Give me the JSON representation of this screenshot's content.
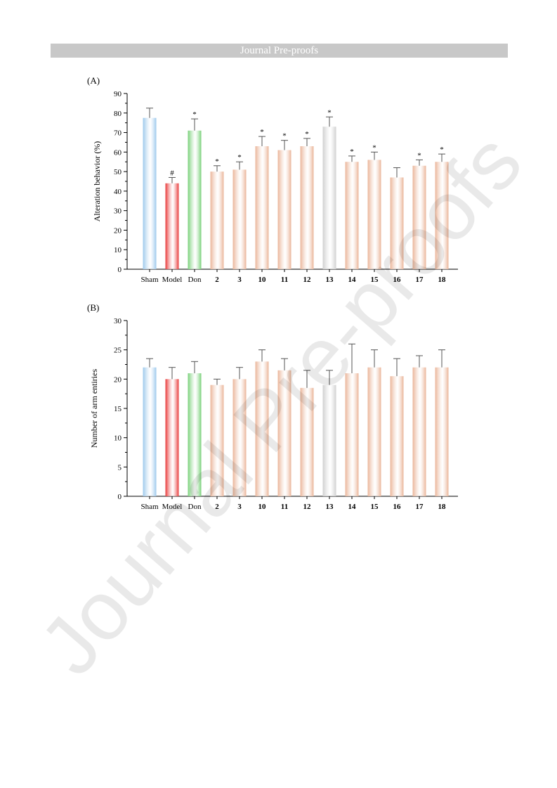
{
  "header": {
    "title": "Journal Pre-proofs"
  },
  "watermark": {
    "text": "Journal Pre-proofs"
  },
  "colors": {
    "sham": "#9cc8ec",
    "model": "#e83838",
    "don": "#78d078",
    "compound": "#eab498",
    "compound13": "#cfcfcf"
  },
  "chart_data": [
    {
      "type": "bar",
      "panel_label": "(A)",
      "ylabel": "Alteration behavior (%)",
      "ylim": [
        0,
        90
      ],
      "yticks": [
        0,
        10,
        20,
        30,
        40,
        50,
        60,
        70,
        80,
        90
      ],
      "categories": [
        "Sham",
        "Model",
        "Don",
        "2",
        "3",
        "10",
        "11",
        "12",
        "13",
        "14",
        "15",
        "16",
        "17",
        "18"
      ],
      "values": [
        77.5,
        44,
        71,
        50,
        51,
        63,
        61,
        63,
        73,
        55,
        56,
        47,
        53,
        55
      ],
      "errors": [
        5,
        3,
        6,
        3,
        4,
        5,
        5,
        4,
        5,
        3,
        4,
        5,
        3,
        4
      ],
      "annotations": [
        "",
        "#",
        "*",
        "*",
        "*",
        "*",
        "*",
        "*",
        "*",
        "*",
        "*",
        "",
        "*",
        "*"
      ]
    },
    {
      "type": "bar",
      "panel_label": "(B)",
      "ylabel": "Number of arm entiries",
      "ylim": [
        0,
        30
      ],
      "yticks": [
        0,
        5,
        10,
        15,
        20,
        25,
        30
      ],
      "categories": [
        "Sham",
        "Model",
        "Don",
        "2",
        "3",
        "10",
        "11",
        "12",
        "13",
        "14",
        "15",
        "16",
        "17",
        "18"
      ],
      "values": [
        22,
        20,
        21,
        19,
        20,
        23,
        21.5,
        18.5,
        19,
        21,
        22,
        20.5,
        22,
        22
      ],
      "errors": [
        1.5,
        2,
        2,
        1,
        2,
        2,
        2,
        3,
        2.5,
        5,
        3,
        3,
        2,
        3
      ],
      "annotations": [
        "",
        "",
        "",
        "",
        "",
        "",
        "",
        "",
        "",
        "",
        "",
        "",
        "",
        ""
      ]
    }
  ]
}
